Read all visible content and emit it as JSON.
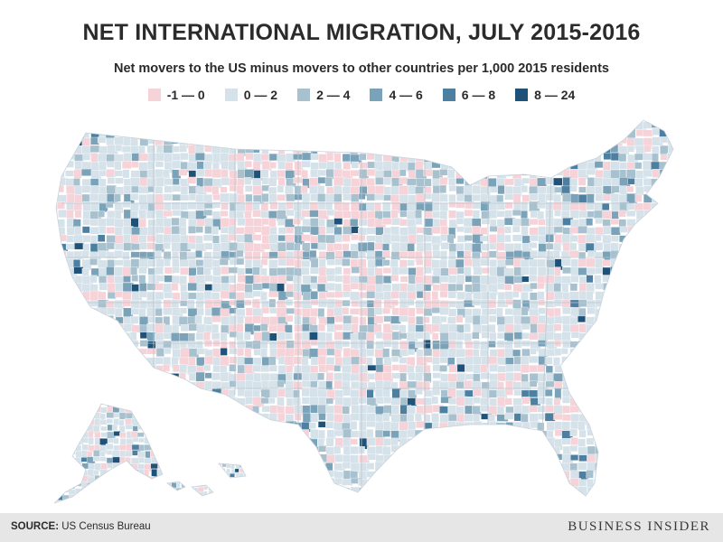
{
  "header": {
    "title": "NET INTERNATIONAL MIGRATION, JULY 2015-2016",
    "subtitle": "Net movers to the US minus movers to other countries per 1,000 2015 residents"
  },
  "legend": {
    "items": [
      {
        "label": "-1 — 0",
        "color": "#f6d3d8"
      },
      {
        "label": "0 — 2",
        "color": "#d6e2ea"
      },
      {
        "label": "2 — 4",
        "color": "#a8c1cf"
      },
      {
        "label": "4 — 6",
        "color": "#7aa3b9"
      },
      {
        "label": "6 — 8",
        "color": "#4d80a0"
      },
      {
        "label": "8 — 24",
        "color": "#1f5278"
      }
    ]
  },
  "colors": {
    "border": "#ffffff",
    "background": "#ffffff",
    "footer_bg": "#e6e6e6"
  },
  "footer": {
    "source_label": "SOURCE:",
    "source_text": "US Census Bureau",
    "brand": "BUSINESS INSIDER"
  }
}
